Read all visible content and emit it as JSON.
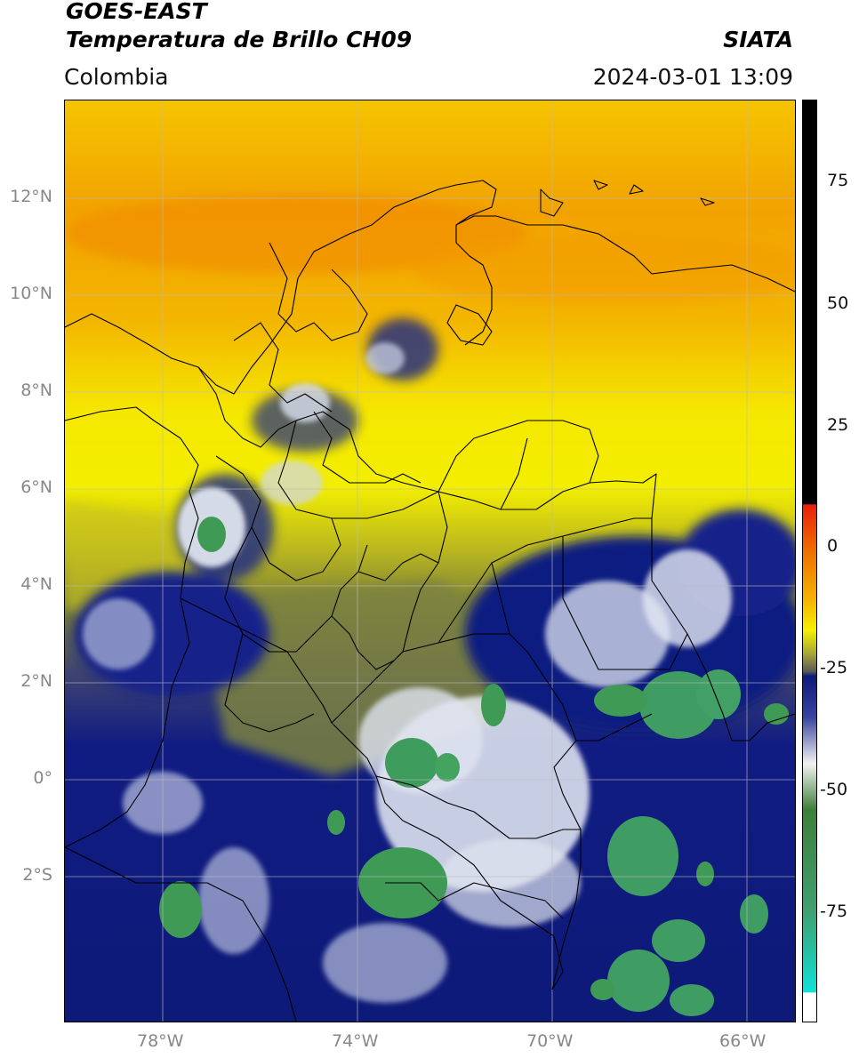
{
  "header": {
    "satellite": "GOES-EAST",
    "product": "Temperatura de Brillo CH09",
    "region": "Colombia",
    "agency": "SIATA",
    "datetime": "2024-03-01 13:09"
  },
  "axes": {
    "lat_ticks": [
      "12°N",
      "10°N",
      "8°N",
      "6°N",
      "4°N",
      "2°N",
      "0°",
      "2°S"
    ],
    "lon_ticks": [
      "78°W",
      "74°W",
      "70°W",
      "66°W"
    ]
  },
  "colorbar": {
    "ticks": [
      "75",
      "50",
      "25",
      "0",
      "-25",
      "-50",
      "-75"
    ],
    "colors": {
      "black": "#000000",
      "red": "#e8200c",
      "orange": "#f6a000",
      "yellow": "#f5f000",
      "olive": "#8a8a2e",
      "navy": "#0c1a7c",
      "white": "#f2f2f2",
      "green": "#3f9a4e",
      "cyan": "#10e0d6"
    }
  },
  "map_colors": {
    "north_orange": "#f3a400",
    "mid_yellow": "#f2e600",
    "olive": "#868a3a",
    "deep_blue": "#101c80",
    "cloud_white": "#e8ecf4",
    "cold_green": "#3e9d5c"
  }
}
